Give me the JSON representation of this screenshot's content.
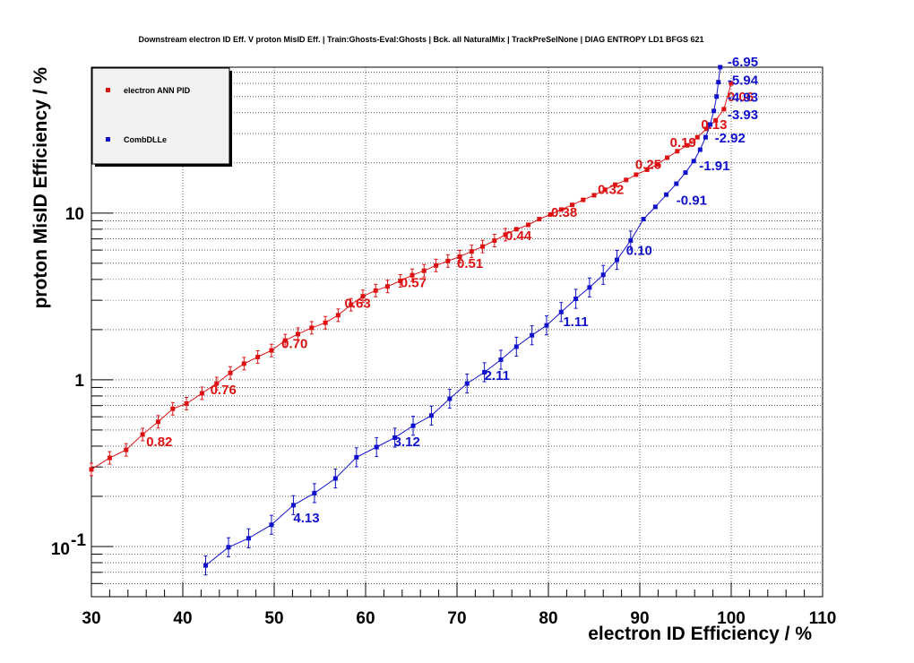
{
  "chart_data": {
    "type": "line",
    "title": "Downstream electron ID Eff. V proton MisID Eff. | Train:Ghosts-Eval:Ghosts | Bck. all NaturalMix | TrackPreSelNone | DIAG ENTROPY LD1 BFGS 621",
    "xlabel": "electron ID Efficiency / %",
    "ylabel": "proton MisID Efficiency / %",
    "xlim": [
      30,
      110
    ],
    "ylim": [
      0.05,
      75
    ],
    "yscale": "log",
    "grid": true,
    "legend_position": "top-left",
    "x_ticks": [
      "30",
      "40",
      "50",
      "60",
      "70",
      "80",
      "90",
      "100",
      "110"
    ],
    "y_ticks": [
      {
        "value": 0.1,
        "base": "10",
        "exp": "-1"
      },
      {
        "value": 1,
        "base": "1",
        "exp": ""
      },
      {
        "value": 10,
        "base": "10",
        "exp": ""
      }
    ],
    "series": [
      {
        "name": "electron ANN PID",
        "color": "#dd1111",
        "x": [
          30,
          32,
          33.8,
          35.6,
          37.3,
          38.9,
          40.4,
          42.1,
          43.7,
          45.2,
          46.7,
          48.2,
          49.7,
          51.2,
          52.6,
          54.1,
          55.6,
          57,
          58.4,
          59.7,
          61.1,
          62.4,
          63.8,
          65.1,
          66.4,
          67.7,
          69,
          70.3,
          71.6,
          72.8,
          74.1,
          75.3,
          76.5,
          77.8,
          79,
          80.2,
          81.4,
          82.6,
          83.8,
          85,
          86.2,
          87.3,
          88.5,
          89.6,
          90.8,
          91.9,
          93,
          94.1,
          95.2,
          96.3,
          97.3,
          98.3,
          99.2,
          100
        ],
        "y": [
          0.29,
          0.34,
          0.38,
          0.47,
          0.56,
          0.67,
          0.72,
          0.83,
          0.95,
          1.1,
          1.25,
          1.37,
          1.5,
          1.72,
          1.88,
          2.05,
          2.2,
          2.44,
          2.82,
          3.17,
          3.43,
          3.63,
          3.92,
          4.24,
          4.51,
          4.85,
          5.16,
          5.48,
          5.89,
          6.3,
          6.84,
          7.42,
          8,
          8.5,
          9.2,
          9.8,
          10.5,
          11.2,
          12,
          12.8,
          13.8,
          14.8,
          15.8,
          17,
          18.2,
          19.6,
          21.5,
          23.5,
          25.5,
          28.5,
          32,
          36,
          42,
          60
        ],
        "labels": [
          {
            "x": 36,
            "y": 0.4,
            "text": "0.82"
          },
          {
            "x": 43,
            "y": 0.82,
            "text": "0.76"
          },
          {
            "x": 50.8,
            "y": 1.55,
            "text": "0.70"
          },
          {
            "x": 57.7,
            "y": 2.7,
            "text": "0.63"
          },
          {
            "x": 63.8,
            "y": 3.6,
            "text": "0.57"
          },
          {
            "x": 70,
            "y": 4.7,
            "text": "0.51"
          },
          {
            "x": 75.3,
            "y": 6.9,
            "text": "0.44"
          },
          {
            "x": 80.3,
            "y": 9.5,
            "text": "0.38"
          },
          {
            "x": 85.4,
            "y": 13,
            "text": "0.32"
          },
          {
            "x": 89.5,
            "y": 18.4,
            "text": "0.25"
          },
          {
            "x": 93.3,
            "y": 25,
            "text": "0.19"
          },
          {
            "x": 96.7,
            "y": 32,
            "text": "0.13"
          },
          {
            "x": 99.6,
            "y": 47,
            "text": "0.06"
          }
        ]
      },
      {
        "name": "CombDLLe",
        "color": "#1111cc",
        "x": [
          42.5,
          45,
          47.2,
          49.7,
          52.1,
          54.4,
          56.7,
          59,
          61.2,
          63.2,
          65.2,
          67.2,
          69.2,
          71.1,
          73,
          74.8,
          76.5,
          78.2,
          79.8,
          81.4,
          83,
          84.5,
          86,
          87.5,
          89,
          90.4,
          91.7,
          92.9,
          94,
          95,
          95.9,
          96.6,
          97.2,
          97.7,
          98.1,
          98.4,
          98.6,
          98.8
        ],
        "y": [
          0.077,
          0.099,
          0.112,
          0.135,
          0.177,
          0.209,
          0.256,
          0.343,
          0.395,
          0.45,
          0.53,
          0.61,
          0.77,
          0.95,
          1.11,
          1.32,
          1.58,
          1.85,
          2.12,
          2.55,
          3.06,
          3.58,
          4.26,
          5.24,
          6.85,
          9.2,
          10.9,
          12.9,
          15,
          17.5,
          20.5,
          24,
          28.5,
          34,
          41,
          50,
          61,
          75
        ],
        "labels": [
          {
            "x": 52.1,
            "y": 0.14,
            "text": "4.13"
          },
          {
            "x": 63.1,
            "y": 0.4,
            "text": "3.12"
          },
          {
            "x": 73,
            "y": 1.0,
            "text": "2.11"
          },
          {
            "x": 81.6,
            "y": 2.1,
            "text": "1.11"
          },
          {
            "x": 88.5,
            "y": 5.6,
            "text": "0.10"
          },
          {
            "x": 94,
            "y": 11.2,
            "text": "-0.91"
          },
          {
            "x": 96.5,
            "y": 18.1,
            "text": "-1.91"
          },
          {
            "x": 98.2,
            "y": 26.5,
            "text": "-2.92"
          },
          {
            "x": 99.6,
            "y": 36.5,
            "text": "-3.93"
          },
          {
            "x": 99.6,
            "y": 46.5,
            "text": "-4.93"
          },
          {
            "x": 99.6,
            "y": 59,
            "text": "-5.94"
          },
          {
            "x": 99.6,
            "y": 76,
            "text": "-6.95"
          }
        ]
      }
    ]
  }
}
